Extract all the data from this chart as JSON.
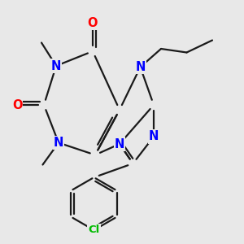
{
  "background_color": "#e8e8e8",
  "atom_colors": {
    "N": "#0000ff",
    "O": "#ff0000",
    "Cl": "#00bb00"
  },
  "bond_color": "#1a1a1a",
  "bond_width": 1.6,
  "font_size_atom": 10.5,
  "background": "#e8e8e8"
}
